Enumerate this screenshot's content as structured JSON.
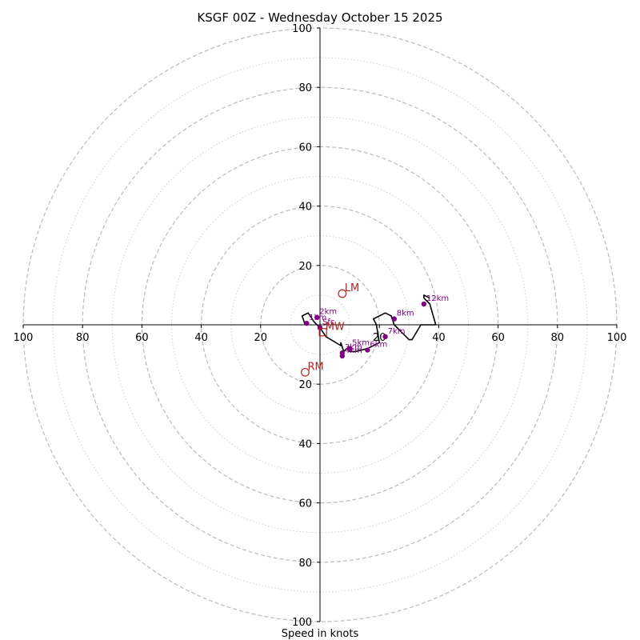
{
  "chart_data": {
    "type": "hodograph",
    "title": "KSGF 00Z - Wednesday October 15 2025",
    "xlabel": "Speed in knots",
    "rmax": 100,
    "ring_major_step": 20,
    "ring_minor_step": 10,
    "x_tick_labels": [
      "100",
      "80",
      "60",
      "40",
      "20",
      "20",
      "40",
      "60",
      "80",
      "100"
    ],
    "y_tick_labels": [
      "100",
      "80",
      "60",
      "40",
      "20",
      "20",
      "40",
      "60",
      "80",
      "100"
    ],
    "colors": {
      "hodograph": "#000000",
      "height_marker": "#800080",
      "storm_motion": "#b22222",
      "ring": "#bbbbbb",
      "axis": "#000000"
    },
    "hodograph": {
      "u": [
        -5,
        -6,
        -4,
        -2,
        0,
        2,
        7,
        7,
        8,
        9,
        10,
        12,
        16,
        20,
        19,
        18,
        22,
        24,
        25,
        27,
        30,
        31,
        34,
        37,
        39,
        37,
        35,
        35,
        37
      ],
      "v": [
        0,
        3,
        4,
        1,
        -1,
        -4,
        -7,
        -6,
        -9,
        -8,
        -9,
        -9,
        -8,
        -6,
        0,
        2,
        4,
        3,
        0,
        -2,
        -5,
        -5,
        0,
        0,
        0,
        7,
        9,
        10,
        9
      ],
      "height_markers": [
        {
          "label": "1km",
          "u": -4.5,
          "v": 0.5
        },
        {
          "label": "Sfc",
          "u": 0,
          "v": -1
        },
        {
          "label": "2km",
          "u": -1,
          "v": 2.5
        },
        {
          "label": "3km",
          "u": 7.5,
          "v": -9.5
        },
        {
          "label": "4km",
          "u": 7.5,
          "v": -10.5
        },
        {
          "label": "5km",
          "u": 10,
          "v": -8
        },
        {
          "label": "6km",
          "u": 16,
          "v": -8.5
        },
        {
          "label": "7km",
          "u": 22,
          "v": -4
        },
        {
          "label": "8km",
          "u": 25,
          "v": 2
        },
        {
          "label": "12km",
          "u": 35,
          "v": 7
        }
      ]
    },
    "storm_motion": [
      {
        "label": "LM",
        "u": 7.5,
        "v": 10.5,
        "shape": "circle"
      },
      {
        "label": "MW",
        "u": 1,
        "v": -2.5,
        "shape": "square"
      },
      {
        "label": "RM",
        "u": -5,
        "v": -16,
        "shape": "circle"
      }
    ]
  }
}
